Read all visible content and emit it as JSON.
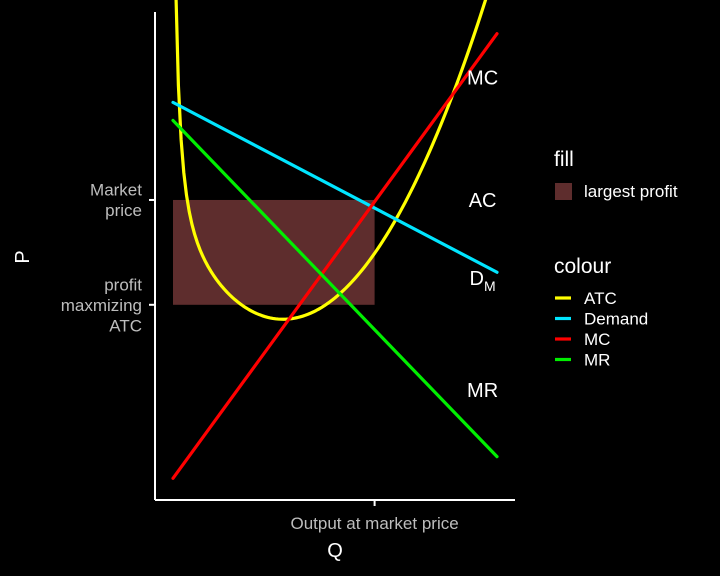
{
  "chart_data": {
    "type": "line",
    "xlabel": "Q",
    "ylabel": "P",
    "x_ticks": [
      {
        "value": 6.1,
        "label": "Output at market price"
      }
    ],
    "y_ticks": [
      {
        "value": 8.3,
        "lines": [
          "Market",
          "price"
        ]
      },
      {
        "value": 5.4,
        "lines": [
          "profit",
          "maxmizing",
          "ATC"
        ]
      }
    ],
    "xlim": [
      0,
      10
    ],
    "ylim": [
      0,
      13.5
    ],
    "grid": false,
    "legend_position": "right",
    "series": [
      {
        "name": "ATC",
        "color": "#ffff00",
        "kind": "atc",
        "a": 4.95,
        "b": 0.275,
        "c": 0.525,
        "xmin": 0.5,
        "xmax": 9.5
      },
      {
        "name": "Demand",
        "color": "#00e5ff",
        "kind": "linear",
        "x": [
          0.5,
          9.5
        ],
        "y": [
          11,
          6.3
        ]
      },
      {
        "name": "MC",
        "color": "#ff0000",
        "kind": "linear",
        "x": [
          0.5,
          9.5
        ],
        "y": [
          0.6,
          12.9
        ]
      },
      {
        "name": "MR",
        "color": "#00ee00",
        "kind": "linear",
        "x": [
          0.5,
          9.5
        ],
        "y": [
          10.5,
          1.2
        ]
      }
    ],
    "rect": {
      "name": "largest profit",
      "color": "#5e2d2d",
      "x": [
        0.5,
        6.1
      ],
      "y": [
        5.4,
        8.3
      ]
    },
    "curve_labels": [
      {
        "text": "MC",
        "x": 9.1,
        "y": 11.5
      },
      {
        "text": "AC",
        "x": 9.1,
        "y": 8.1
      },
      {
        "text": "D",
        "sub": "M",
        "x": 9.1,
        "y": 5.95
      },
      {
        "text": "MR",
        "x": 9.1,
        "y": 2.85
      }
    ],
    "legend": {
      "fill_title": "fill",
      "fill_items": [
        {
          "label": "largest profit",
          "color": "#5e2d2d"
        }
      ],
      "colour_title": "colour",
      "colour_items": [
        {
          "label": "ATC",
          "color": "#ffff00"
        },
        {
          "label": "Demand",
          "color": "#00e5ff"
        },
        {
          "label": "MC",
          "color": "#ff0000"
        },
        {
          "label": "MR",
          "color": "#00ee00"
        }
      ]
    }
  }
}
